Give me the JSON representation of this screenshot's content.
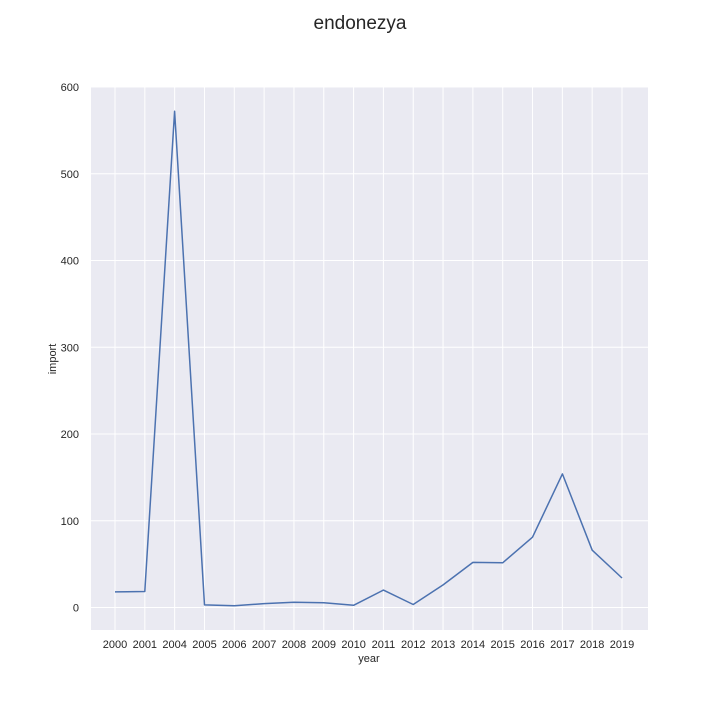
{
  "chart_data": {
    "type": "line",
    "title": "endonezya",
    "xlabel": "year",
    "ylabel": "import",
    "categories": [
      "2000",
      "2001",
      "2004",
      "2005",
      "2006",
      "2007",
      "2008",
      "2009",
      "2010",
      "2011",
      "2012",
      "2013",
      "2014",
      "2015",
      "2016",
      "2017",
      "2018",
      "2019"
    ],
    "series": [
      {
        "values": [
          18,
          18.5,
          572,
          3,
          2,
          4.5,
          6,
          5.5,
          2.5,
          20,
          3.5,
          26,
          52,
          51.5,
          81,
          154,
          66,
          34
        ]
      }
    ],
    "yticks": [
      "0",
      "100",
      "200",
      "300",
      "400",
      "500",
      "600"
    ],
    "ylim": [
      -26,
      600
    ],
    "grid": true,
    "line_color": "#4c72b0",
    "background_color": "#eaeaf2",
    "grid_color": "#ffffff"
  }
}
